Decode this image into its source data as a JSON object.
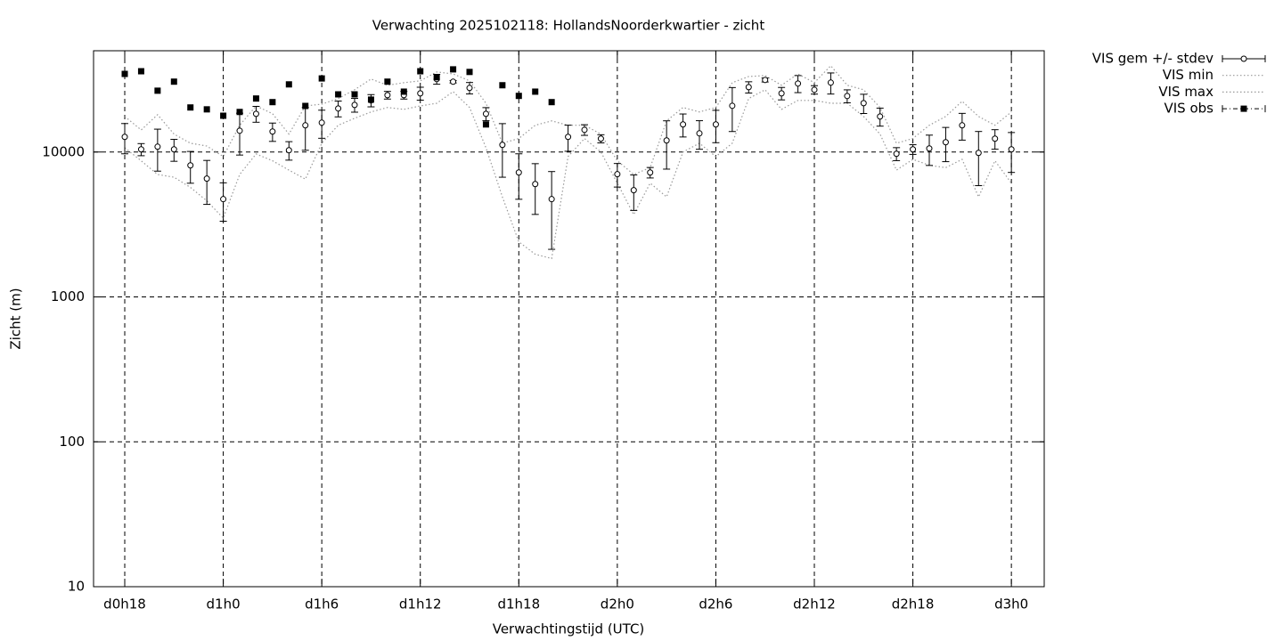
{
  "chart_data": {
    "type": "errorbar",
    "title": "Verwachting 2025102118: HollandsNoorderkwartier - zicht",
    "xlabel": "Verwachtingstijd (UTC)",
    "ylabel": "Zicht (m)",
    "log_y": true,
    "grid": true,
    "legend": "outside-right",
    "xlim": [
      16.1,
      74
    ],
    "ylim": [
      10,
      50000
    ],
    "xticks": [
      {
        "value": 18,
        "label": "d0h18"
      },
      {
        "value": 24,
        "label": "d1h0"
      },
      {
        "value": 30,
        "label": "d1h6"
      },
      {
        "value": 36,
        "label": "d1h12"
      },
      {
        "value": 42,
        "label": "d1h18"
      },
      {
        "value": 48,
        "label": "d2h0"
      },
      {
        "value": 54,
        "label": "d2h6"
      },
      {
        "value": 60,
        "label": "d2h12"
      },
      {
        "value": 66,
        "label": "d2h18"
      },
      {
        "value": 72,
        "label": "d3h0"
      }
    ],
    "yticks": [
      10,
      100,
      1000,
      10000
    ],
    "x": [
      18,
      19,
      20,
      21,
      22,
      23,
      24,
      25,
      26,
      27,
      28,
      29,
      30,
      31,
      32,
      33,
      34,
      35,
      36,
      37,
      38,
      39,
      40,
      41,
      42,
      43,
      44,
      45,
      46,
      47,
      48,
      49,
      50,
      51,
      52,
      53,
      54,
      55,
      56,
      57,
      58,
      59,
      60,
      61,
      62,
      63,
      64,
      65,
      66,
      67,
      68,
      69,
      70,
      71,
      72
    ],
    "series": [
      {
        "name": "VIS gem +/- stdev",
        "style": "errorbar",
        "color": "#000000",
        "values": [
          12720,
          10430,
          10880,
          10430,
          8090,
          6550,
          4730,
          14030,
          18350,
          13840,
          10290,
          15280,
          15940,
          19980,
          21140,
          22700,
          24700,
          24700,
          25400,
          31870,
          30560,
          27680,
          18350,
          11200,
          7220,
          6010,
          4730,
          12720,
          14230,
          12360,
          7030,
          5450,
          7220,
          12020,
          15500,
          13450,
          15500,
          20850,
          28040,
          31430,
          25400,
          29700,
          26900,
          30130,
          24360,
          21740,
          17590,
          9720,
          10430,
          10580,
          11680,
          15280,
          9860,
          12360,
          10430
        ],
        "errors": [
          3000,
          1000,
          3500,
          1800,
          2000,
          2200,
          1400,
          4500,
          2300,
          2000,
          1500,
          5000,
          3500,
          2500,
          2300,
          2200,
          1500,
          1500,
          2600,
          2500,
          600,
          2500,
          1900,
          4500,
          2500,
          2300,
          2600,
          2600,
          1200,
          800,
          1300,
          1500,
          600,
          4400,
          2800,
          3000,
          3900,
          7000,
          2500,
          1000,
          2500,
          4000,
          1800,
          5000,
          2500,
          3300,
          2500,
          1000,
          800,
          2500,
          3100,
          3200,
          4000,
          1900,
          3200
        ]
      },
      {
        "name": "VIS min",
        "style": "dotted",
        "color": "#999999",
        "values": [
          10700,
          8700,
          7000,
          6700,
          5700,
          4600,
          3500,
          7000,
          9700,
          8700,
          7500,
          6500,
          11500,
          15300,
          17100,
          18900,
          20300,
          19700,
          20800,
          21700,
          26100,
          20300,
          10700,
          4900,
          2400,
          1970,
          1840,
          9300,
          12400,
          10000,
          6100,
          3700,
          6100,
          4900,
          10000,
          11500,
          9300,
          11500,
          23400,
          26900,
          19700,
          22700,
          22700,
          21700,
          21700,
          17600,
          13300,
          7500,
          8900,
          8100,
          7800,
          8900,
          4900,
          8700,
          6100
        ]
      },
      {
        "name": "VIS max",
        "style": "dotted",
        "color": "#999999",
        "values": [
          17600,
          14200,
          18100,
          13300,
          11500,
          11000,
          9300,
          15300,
          20800,
          18400,
          13300,
          20800,
          21400,
          23400,
          26900,
          31900,
          28900,
          30100,
          31000,
          35700,
          34600,
          31000,
          21700,
          11500,
          12400,
          15300,
          16400,
          15300,
          15300,
          13300,
          8700,
          7000,
          7800,
          16400,
          20300,
          18900,
          20300,
          30100,
          33200,
          33700,
          28900,
          34600,
          30100,
          39400,
          28900,
          26900,
          20300,
          11500,
          12400,
          15300,
          17600,
          22400,
          17600,
          15300,
          18900
        ]
      },
      {
        "name": "VIS obs",
        "style": "points",
        "color": "#000000",
        "values": [
          34600,
          36100,
          26500,
          30600,
          20300,
          19700,
          17800,
          18900,
          23400,
          22100,
          29300,
          20800,
          32200,
          25000,
          25000,
          23000,
          30600,
          26100,
          36100,
          32800,
          37200,
          35700,
          15500,
          28900,
          24400,
          26100,
          22100,
          null,
          null,
          null,
          null,
          null,
          null,
          null,
          null,
          null,
          null,
          null,
          null,
          null,
          null,
          null,
          null,
          null,
          null,
          null,
          null,
          null,
          null,
          null,
          null,
          null,
          null,
          null,
          null
        ]
      }
    ]
  }
}
